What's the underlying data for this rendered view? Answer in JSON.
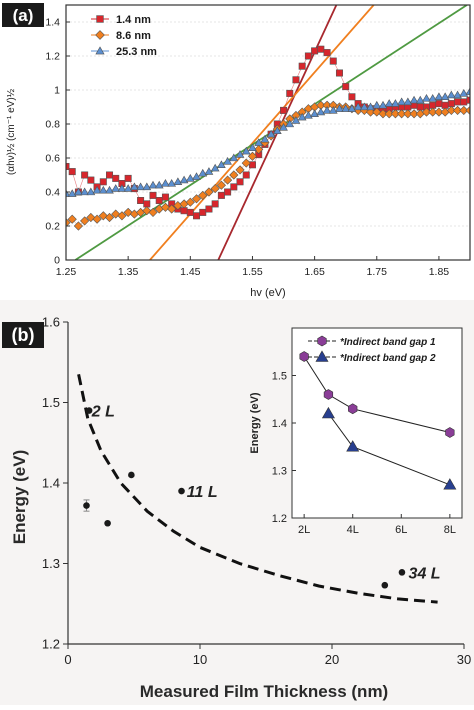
{
  "chart_data": [
    {
      "type": "scatter",
      "panel_label": "(a)",
      "xlabel": "hv (eV)",
      "ylabel": "(αhν)½ (cm⁻¹ eV)½",
      "xlim": [
        1.25,
        1.9
      ],
      "ylim": [
        0,
        1.5
      ],
      "xticks": [
        1.25,
        1.35,
        1.45,
        1.55,
        1.65,
        1.75,
        1.85
      ],
      "xtick_labels": [
        "1.25",
        "1.35",
        "1.45",
        "1.55",
        "1.65",
        "1.75",
        "1.85"
      ],
      "yticks": [
        0,
        0.2,
        0.4,
        0.6,
        0.8,
        1,
        1.2,
        1.4
      ],
      "ytick_labels": [
        "0",
        "0.2",
        "0.4",
        "0.6",
        "0.8",
        "1",
        "1.2",
        "1.4"
      ],
      "legend_position": "top-left",
      "series": [
        {
          "name": "1.4 nm",
          "marker": "square",
          "color": "#d7262c",
          "x": [
            1.25,
            1.26,
            1.27,
            1.28,
            1.29,
            1.3,
            1.31,
            1.32,
            1.33,
            1.34,
            1.35,
            1.36,
            1.37,
            1.38,
            1.39,
            1.4,
            1.41,
            1.42,
            1.43,
            1.44,
            1.45,
            1.46,
            1.47,
            1.48,
            1.49,
            1.5,
            1.51,
            1.52,
            1.53,
            1.54,
            1.55,
            1.56,
            1.57,
            1.58,
            1.59,
            1.6,
            1.61,
            1.62,
            1.63,
            1.64,
            1.65,
            1.66,
            1.67,
            1.68,
            1.69,
            1.7,
            1.71,
            1.72,
            1.73,
            1.74,
            1.75,
            1.76,
            1.77,
            1.78,
            1.79,
            1.8,
            1.81,
            1.82,
            1.83,
            1.84,
            1.85,
            1.86,
            1.87,
            1.88,
            1.89,
            1.9
          ],
          "y": [
            0.55,
            0.52,
            0.4,
            0.5,
            0.47,
            0.43,
            0.46,
            0.5,
            0.48,
            0.45,
            0.48,
            0.42,
            0.35,
            0.33,
            0.38,
            0.35,
            0.37,
            0.33,
            0.3,
            0.29,
            0.28,
            0.26,
            0.28,
            0.3,
            0.33,
            0.38,
            0.4,
            0.43,
            0.46,
            0.5,
            0.56,
            0.62,
            0.68,
            0.74,
            0.8,
            0.88,
            0.98,
            1.06,
            1.14,
            1.2,
            1.23,
            1.24,
            1.22,
            1.17,
            1.1,
            1.02,
            0.96,
            0.92,
            0.9,
            0.89,
            0.88,
            0.88,
            0.89,
            0.9,
            0.9,
            0.9,
            0.91,
            0.9,
            0.9,
            0.91,
            0.92,
            0.91,
            0.92,
            0.93,
            0.93,
            0.94
          ]
        },
        {
          "name": "8.6 nm",
          "marker": "diamond",
          "color": "#f07f1f",
          "x": [
            1.25,
            1.26,
            1.27,
            1.28,
            1.29,
            1.3,
            1.31,
            1.32,
            1.33,
            1.34,
            1.35,
            1.36,
            1.37,
            1.38,
            1.39,
            1.4,
            1.41,
            1.42,
            1.43,
            1.44,
            1.45,
            1.46,
            1.47,
            1.48,
            1.49,
            1.5,
            1.51,
            1.52,
            1.53,
            1.54,
            1.55,
            1.56,
            1.57,
            1.58,
            1.59,
            1.6,
            1.61,
            1.62,
            1.63,
            1.64,
            1.65,
            1.66,
            1.67,
            1.68,
            1.69,
            1.7,
            1.71,
            1.72,
            1.73,
            1.74,
            1.75,
            1.76,
            1.77,
            1.78,
            1.79,
            1.8,
            1.81,
            1.82,
            1.83,
            1.84,
            1.85,
            1.86,
            1.87,
            1.88,
            1.89,
            1.9
          ],
          "y": [
            0.22,
            0.24,
            0.2,
            0.23,
            0.25,
            0.24,
            0.26,
            0.25,
            0.27,
            0.26,
            0.28,
            0.27,
            0.28,
            0.29,
            0.28,
            0.3,
            0.31,
            0.3,
            0.32,
            0.33,
            0.34,
            0.36,
            0.38,
            0.4,
            0.42,
            0.44,
            0.47,
            0.5,
            0.53,
            0.57,
            0.61,
            0.65,
            0.69,
            0.73,
            0.77,
            0.8,
            0.83,
            0.85,
            0.87,
            0.89,
            0.9,
            0.91,
            0.91,
            0.91,
            0.9,
            0.9,
            0.89,
            0.88,
            0.88,
            0.87,
            0.87,
            0.86,
            0.86,
            0.86,
            0.86,
            0.86,
            0.86,
            0.86,
            0.87,
            0.87,
            0.87,
            0.87,
            0.88,
            0.88,
            0.88,
            0.88
          ]
        },
        {
          "name": "25.3 nm",
          "marker": "triangle",
          "color": "#5b8fd0",
          "x": [
            1.25,
            1.26,
            1.27,
            1.28,
            1.29,
            1.3,
            1.31,
            1.32,
            1.33,
            1.34,
            1.35,
            1.36,
            1.37,
            1.38,
            1.39,
            1.4,
            1.41,
            1.42,
            1.43,
            1.44,
            1.45,
            1.46,
            1.47,
            1.48,
            1.49,
            1.5,
            1.51,
            1.52,
            1.53,
            1.54,
            1.55,
            1.56,
            1.57,
            1.58,
            1.59,
            1.6,
            1.61,
            1.62,
            1.63,
            1.64,
            1.65,
            1.66,
            1.67,
            1.68,
            1.69,
            1.7,
            1.71,
            1.72,
            1.73,
            1.74,
            1.75,
            1.76,
            1.77,
            1.78,
            1.79,
            1.8,
            1.81,
            1.82,
            1.83,
            1.84,
            1.85,
            1.86,
            1.87,
            1.88,
            1.89,
            1.9
          ],
          "y": [
            0.39,
            0.39,
            0.4,
            0.4,
            0.4,
            0.41,
            0.41,
            0.41,
            0.42,
            0.42,
            0.42,
            0.43,
            0.43,
            0.43,
            0.44,
            0.44,
            0.45,
            0.45,
            0.46,
            0.47,
            0.48,
            0.49,
            0.51,
            0.52,
            0.54,
            0.56,
            0.58,
            0.6,
            0.62,
            0.64,
            0.66,
            0.69,
            0.71,
            0.74,
            0.76,
            0.78,
            0.8,
            0.82,
            0.84,
            0.85,
            0.86,
            0.87,
            0.88,
            0.88,
            0.89,
            0.89,
            0.89,
            0.9,
            0.9,
            0.9,
            0.91,
            0.91,
            0.92,
            0.92,
            0.93,
            0.93,
            0.94,
            0.94,
            0.95,
            0.95,
            0.96,
            0.96,
            0.97,
            0.97,
            0.98,
            0.99
          ]
        }
      ],
      "fit_lines": [
        {
          "color": "#a8282e",
          "x": [
            1.495,
            1.685
          ],
          "y": [
            0,
            1.5
          ]
        },
        {
          "color": "#f07f1f",
          "x": [
            1.385,
            1.745
          ],
          "y": [
            0,
            1.5
          ]
        },
        {
          "color": "#4f9a42",
          "x": [
            1.265,
            1.895
          ],
          "y": [
            0,
            1.5
          ]
        }
      ]
    },
    {
      "type": "scatter",
      "panel_label": "(b)",
      "xlabel": "Measured Film Thickness (nm)",
      "ylabel": "Energy (eV)",
      "xlim": [
        0,
        30
      ],
      "ylim": [
        1.2,
        1.6
      ],
      "xticks": [
        0,
        10,
        20,
        30
      ],
      "xtick_labels": [
        "0",
        "10",
        "20",
        "30"
      ],
      "yticks": [
        1.2,
        1.3,
        1.4,
        1.5,
        1.6
      ],
      "ytick_labels": [
        "1.2",
        "1.3",
        "1.4",
        "1.5",
        "1.6"
      ],
      "points": {
        "x": [
          1.4,
          1.6,
          3.0,
          4.8,
          8.6,
          24.0,
          25.3
        ],
        "y": [
          1.372,
          1.49,
          1.35,
          1.41,
          1.39,
          1.273,
          1.289
        ],
        "error": [
          0.007,
          0,
          0,
          0,
          0,
          0,
          0
        ]
      },
      "dashed_curve": {
        "x": [
          0.8,
          1.5,
          2.5,
          4,
          6,
          8,
          10,
          13,
          16,
          19,
          22,
          25,
          28
        ],
        "y": [
          1.535,
          1.48,
          1.44,
          1.4,
          1.365,
          1.34,
          1.32,
          1.3,
          1.285,
          1.272,
          1.263,
          1.256,
          1.252
        ]
      },
      "annotations": [
        {
          "text": "2 L",
          "x": 1.8,
          "y": 1.49
        },
        {
          "text": "11 L",
          "x": 9.0,
          "y": 1.39
        },
        {
          "text": "34 L",
          "x": 25.8,
          "y": 1.289
        }
      ],
      "inset": {
        "type": "line",
        "xlabel": "",
        "ylabel": "Energy (eV)",
        "categories": [
          "2L",
          "4L",
          "6L",
          "8L"
        ],
        "xlim": [
          1.5,
          8.5
        ],
        "ylim": [
          1.2,
          1.6
        ],
        "yticks": [
          1.2,
          1.3,
          1.4,
          1.5
        ],
        "ytick_labels": [
          "1.2",
          "1.3",
          "1.4",
          "1.5"
        ],
        "legend_position": "top",
        "series": [
          {
            "name": "*Indirect band gap 1",
            "marker": "hexagon",
            "color": "#8a3d97",
            "x": [
              2,
              3,
              4,
              8
            ],
            "y": [
              1.54,
              1.46,
              1.43,
              1.38
            ]
          },
          {
            "name": "*Indirect band gap 2",
            "marker": "triangle",
            "color": "#283f8f",
            "x": [
              3,
              4,
              8
            ],
            "y": [
              1.42,
              1.35,
              1.27
            ]
          }
        ]
      }
    }
  ]
}
